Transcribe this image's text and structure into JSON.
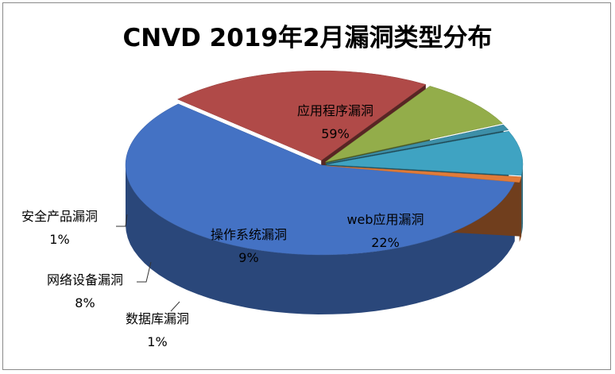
{
  "chart_data": {
    "type": "pie",
    "title": "CNVD 2019年2月漏洞类型分布",
    "categories": [
      "应用程序漏洞",
      "web应用漏洞",
      "操作系统漏洞",
      "数据库漏洞",
      "网络设备漏洞",
      "安全产品漏洞"
    ],
    "values": [
      59,
      22,
      9,
      1,
      8,
      1
    ],
    "value_labels": [
      "59%",
      "22%",
      "9%",
      "1%",
      "8%",
      "1%"
    ],
    "colors": [
      "#4472C4",
      "#B04A48",
      "#93AD4A",
      "#3D8FA8",
      "#3FA3C2",
      "#E07B39"
    ],
    "style": "3d-exploded-pie",
    "legend": "none"
  }
}
